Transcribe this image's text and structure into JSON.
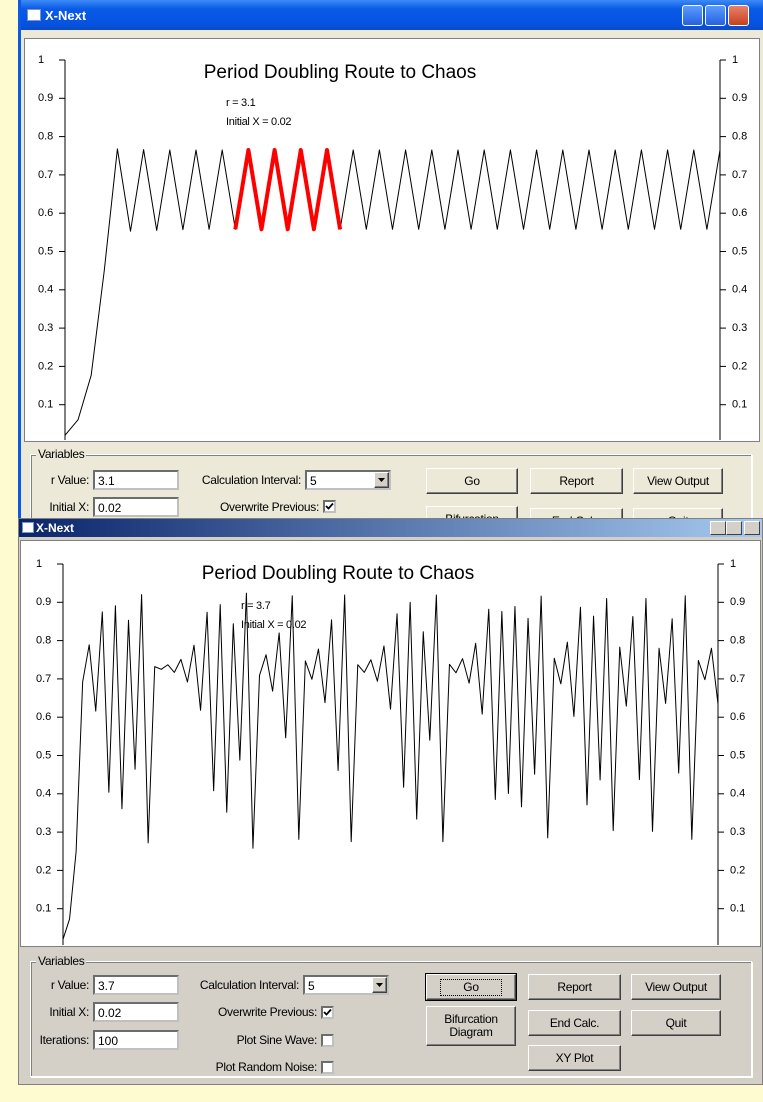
{
  "windows": [
    {
      "title": "X-Next",
      "group": "Variables",
      "fields": [
        {
          "label": "r Value:",
          "value": "3.1"
        },
        {
          "label": "Initial X:",
          "value": "0.02"
        }
      ],
      "interval": {
        "label": "Calculation Interval:",
        "value": "5"
      },
      "checks": [
        {
          "label": "Overwrite Previous:",
          "checked": true
        }
      ],
      "buttons": [
        "Go",
        "Report",
        "View Output",
        "Bifurcation",
        "End Calc.",
        "Quit"
      ]
    },
    {
      "title": "X-Next",
      "group": "Variables",
      "fields": [
        {
          "label": "r Value:",
          "value": "3.7"
        },
        {
          "label": "Initial X:",
          "value": "0.02"
        },
        {
          "label": "Iterations:",
          "value": "100"
        }
      ],
      "interval": {
        "label": "Calculation Interval:",
        "value": "5"
      },
      "checks": [
        {
          "label": "Overwrite Previous:",
          "checked": true
        },
        {
          "label": "Plot Sine Wave:",
          "checked": false
        },
        {
          "label": "Plot Random Noise:",
          "checked": false
        }
      ],
      "buttons": [
        "Go",
        "Report",
        "View Output",
        "Bifurcation Diagram",
        "End Calc.",
        "Quit",
        "XY Plot"
      ]
    }
  ],
  "chart_data": [
    {
      "type": "line",
      "title": "Period Doubling Route to Chaos",
      "annotations": [
        "r = 3.1",
        "Initial X = 0.02"
      ],
      "ylim": [
        0,
        1
      ],
      "yticks": [
        0.1,
        0.2,
        0.3,
        0.4,
        0.5,
        0.6,
        0.7,
        0.8,
        0.9,
        1
      ],
      "series": [
        {
          "color": "#000000",
          "values": [
            0.02,
            0.061,
            0.177,
            0.451,
            0.768,
            0.553,
            0.766,
            0.555,
            0.765,
            0.557,
            0.765,
            0.558,
            0.765,
            0.558,
            0.765,
            0.558,
            0.765,
            0.558,
            0.765,
            0.558,
            0.765,
            0.558,
            0.765,
            0.558,
            0.765,
            0.558,
            0.765,
            0.558,
            0.765,
            0.558,
            0.765,
            0.558,
            0.765,
            0.558,
            0.765,
            0.558,
            0.765,
            0.558,
            0.765,
            0.558,
            0.765,
            0.558,
            0.765,
            0.558,
            0.765,
            0.558,
            0.765,
            0.558,
            0.765,
            0.558,
            0.765
          ]
        },
        {
          "color": "#ff0000",
          "values": [
            null,
            null,
            null,
            null,
            null,
            null,
            null,
            null,
            null,
            null,
            null,
            null,
            null,
            0.558,
            0.765,
            0.558,
            0.765,
            0.558,
            0.765,
            0.558,
            0.765,
            0.558,
            null,
            null,
            null,
            null,
            null,
            null,
            null,
            null,
            null,
            null,
            null,
            null,
            null,
            null,
            null,
            null,
            null,
            null,
            null,
            null,
            null,
            null,
            null,
            null,
            null,
            null,
            null,
            null,
            null
          ]
        }
      ]
    },
    {
      "type": "line",
      "title": "Period Doubling Route to Chaos",
      "annotations": [
        "r = 3.7",
        "Initial X = 0.02"
      ],
      "ylim": [
        0,
        1
      ],
      "yticks": [
        0.1,
        0.2,
        0.3,
        0.4,
        0.5,
        0.6,
        0.7,
        0.8,
        0.9,
        1
      ],
      "series": [
        {
          "color": "#000000",
          "values": [
            0.02,
            0.073,
            0.249,
            0.692,
            0.789,
            0.616,
            0.875,
            0.404,
            0.891,
            0.361,
            0.853,
            0.464,
            0.92,
            0.272,
            0.732,
            0.725,
            0.737,
            0.717,
            0.751,
            0.692,
            0.788,
            0.618,
            0.874,
            0.408,
            0.894,
            0.352,
            0.844,
            0.488,
            0.924,
            0.258,
            0.709,
            0.763,
            0.668,
            0.82,
            0.546,
            0.917,
            0.281,
            0.747,
            0.699,
            0.778,
            0.638,
            0.854,
            0.461,
            0.919,
            0.275,
            0.737,
            0.717,
            0.75,
            0.694,
            0.786,
            0.621,
            0.87,
            0.417,
            0.9,
            0.334,
            0.823,
            0.54,
            0.919,
            0.275,
            0.738,
            0.716,
            0.753,
            0.689,
            0.793,
            0.608,
            0.882,
            0.385,
            0.876,
            0.401,
            0.889,
            0.366,
            0.858,
            0.451,
            0.916,
            0.285,
            0.754,
            0.687,
            0.796,
            0.602,
            0.887,
            0.371,
            0.864,
            0.436,
            0.91,
            0.304,
            0.783,
            0.629,
            0.863,
            0.437,
            0.91,
            0.302,
            0.78,
            0.636,
            0.857,
            0.454,
            0.917,
            0.281,
            0.748,
            0.698,
            0.78,
            0.634
          ]
        }
      ]
    }
  ]
}
